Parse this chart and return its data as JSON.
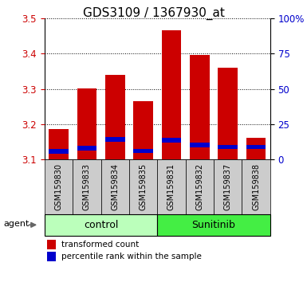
{
  "title": "GDS3109 / 1367930_at",
  "categories": [
    "GSM159830",
    "GSM159833",
    "GSM159834",
    "GSM159835",
    "GSM159831",
    "GSM159832",
    "GSM159837",
    "GSM159838"
  ],
  "red_values": [
    3.185,
    3.302,
    3.34,
    3.265,
    3.465,
    3.395,
    3.36,
    3.16
  ],
  "blue_values": [
    3.122,
    3.132,
    3.156,
    3.124,
    3.155,
    3.14,
    3.135,
    3.135
  ],
  "base": 3.1,
  "ylim_left": [
    3.1,
    3.5
  ],
  "ylim_right": [
    0,
    100
  ],
  "yticks_left": [
    3.1,
    3.2,
    3.3,
    3.4,
    3.5
  ],
  "yticks_right": [
    0,
    25,
    50,
    75,
    100
  ],
  "groups": [
    {
      "label": "control",
      "indices": [
        0,
        1,
        2,
        3
      ],
      "color": "#bbffbb"
    },
    {
      "label": "Sunitinib",
      "indices": [
        4,
        5,
        6,
        7
      ],
      "color": "#44ee44"
    }
  ],
  "agent_label": "agent",
  "bar_width": 0.7,
  "red_color": "#cc0000",
  "blue_color": "#0000cc",
  "legend_red": "transformed count",
  "legend_blue": "percentile rank within the sample",
  "title_fontsize": 11,
  "axis_color_left": "#cc0000",
  "axis_color_right": "#0000cc",
  "xtick_bg_color": "#cccccc",
  "plot_bg_color": "#ffffff",
  "blue_bar_height": 0.013
}
